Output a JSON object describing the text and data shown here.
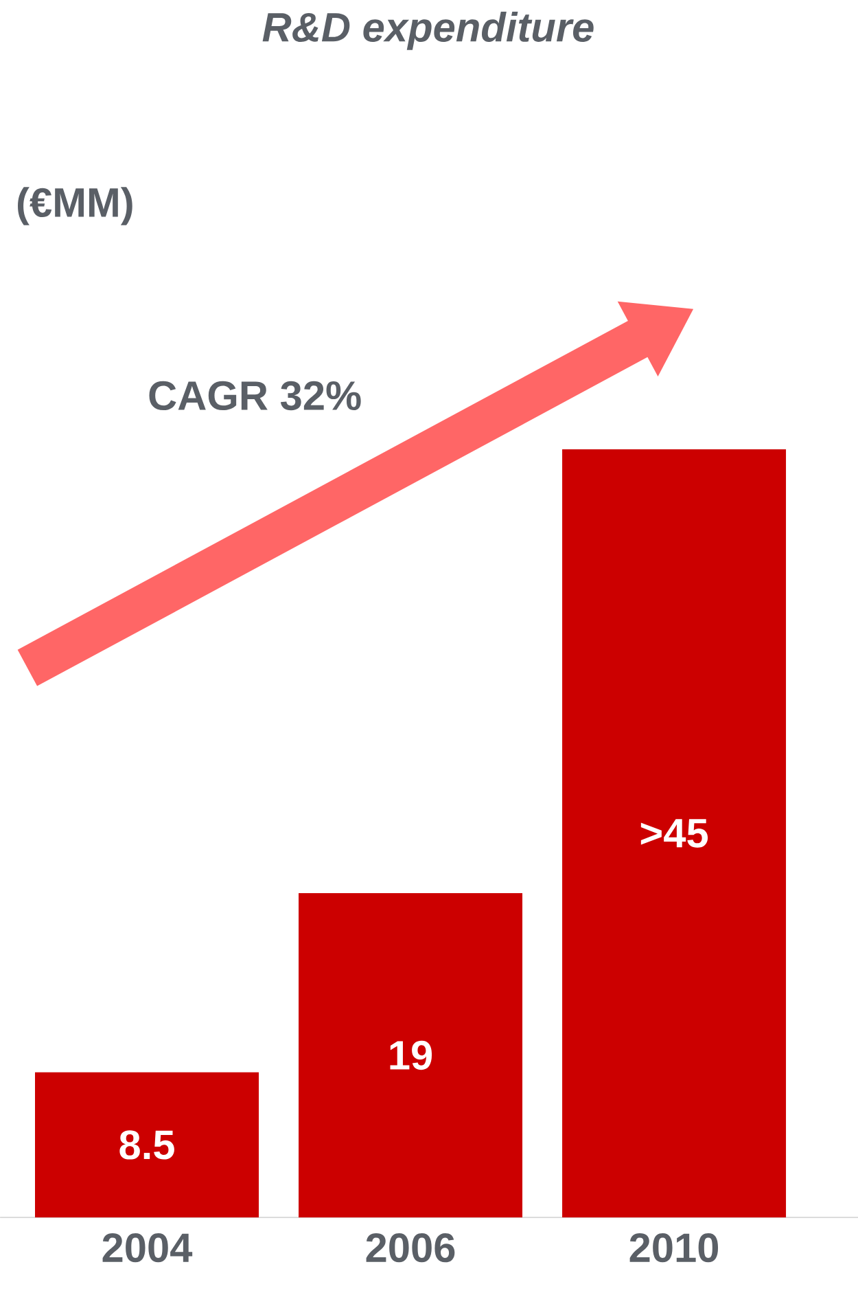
{
  "chart_data": {
    "type": "bar",
    "title": "R&D expenditure",
    "subtitle": "(€MM)",
    "categories": [
      "2004",
      "2006",
      "2010"
    ],
    "values": [
      8.5,
      19,
      45
    ],
    "value_labels": [
      "8.5",
      "19",
      ">45"
    ],
    "color": "#cc0000",
    "annotations": [
      "CAGR 32%"
    ]
  }
}
